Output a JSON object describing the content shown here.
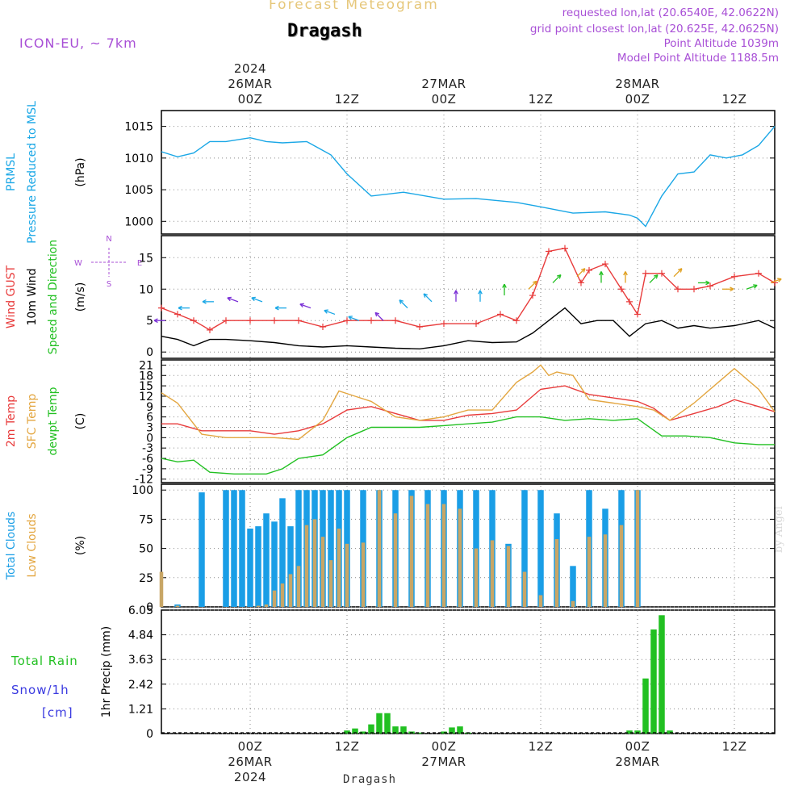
{
  "header": {
    "product": "Forecast Meteogram",
    "model": "ICON-EU, ~ 7km",
    "location": "Dragash",
    "requested": "requested lon,lat (20.6540E, 42.0622N)",
    "grid_point": "grid point closest lon,lat (20.625E, 42.0625N)",
    "point_alt": "Point Altitude 1039m",
    "model_alt": "Model Point Altitude 1188.5m",
    "footer": "Dragash",
    "credit": "by Angel",
    "colors": {
      "header_purple": "#a84fd6",
      "product_yellow": "#e6c77a",
      "title_black": "#000000"
    }
  },
  "time_axis": {
    "top_labels": [
      {
        "hour": 0,
        "lines": [
          "2024",
          "26MAR",
          "00Z"
        ]
      },
      {
        "hour": 12,
        "lines": [
          "12Z"
        ]
      },
      {
        "hour": 24,
        "lines": [
          "27MAR",
          "00Z"
        ]
      },
      {
        "hour": 36,
        "lines": [
          "12Z"
        ]
      },
      {
        "hour": 48,
        "lines": [
          "28MAR",
          "00Z"
        ]
      },
      {
        "hour": 60,
        "lines": [
          "12Z"
        ]
      }
    ],
    "bottom_labels": [
      {
        "hour": 0,
        "lines": [
          "00Z",
          "26MAR",
          "2024"
        ]
      },
      {
        "hour": 12,
        "lines": [
          "12Z"
        ]
      },
      {
        "hour": 24,
        "lines": [
          "00Z",
          "27MAR"
        ]
      },
      {
        "hour": 36,
        "lines": [
          "12Z"
        ]
      },
      {
        "hour": 48,
        "lines": [
          "00Z",
          "28MAR"
        ]
      },
      {
        "hour": 60,
        "lines": [
          "12Z"
        ]
      }
    ],
    "range_hours": [
      -11,
      65
    ]
  },
  "chart_data": [
    {
      "type": "line",
      "panel": "pressure",
      "label_lines": [
        {
          "text": "PRMSL",
          "color": "#1aa7e6"
        },
        {
          "text": "Pressure Reduced to MSL",
          "color": "#1aa7e6"
        }
      ],
      "unit": "(hPa)",
      "yticks": [
        1000,
        1005,
        1010,
        1015
      ],
      "ylim": [
        998,
        1017.5
      ],
      "grid": true,
      "series": [
        {
          "color": "#1aa7e6",
          "x": [
            -11,
            -9,
            -7,
            -5,
            -3,
            0,
            2,
            4,
            7,
            9,
            10,
            12,
            15,
            19,
            24,
            28,
            33,
            36,
            40,
            44,
            47,
            48,
            49,
            51,
            53,
            55,
            57,
            59,
            61,
            63,
            65
          ],
          "values": [
            1011,
            1010.2,
            1010.8,
            1012.6,
            1012.6,
            1013.2,
            1012.6,
            1012.4,
            1012.6,
            1011.2,
            1010.5,
            1007.5,
            1004,
            1004.6,
            1003.5,
            1003.6,
            1003,
            1002.3,
            1001.3,
            1001.5,
            1001,
            1000.5,
            999.2,
            1004,
            1007.5,
            1007.8,
            1010.5,
            1010,
            1010.5,
            1012,
            1015
          ]
        }
      ]
    },
    {
      "type": "line",
      "panel": "wind",
      "label_lines": [
        {
          "text": "Wind GUST",
          "color": "#e83b3b"
        },
        {
          "text": "10m Wind",
          "color": "#000000"
        },
        {
          "text": "Speed and Direction",
          "color": "#22c022"
        }
      ],
      "unit": "(m/s)",
      "compass": {
        "n": "N",
        "s": "S",
        "w": "W",
        "e": "E",
        "color": "#a84fd6"
      },
      "yticks": [
        0,
        5,
        10,
        15
      ],
      "ylim": [
        -1,
        18.5
      ],
      "grid": true,
      "series": [
        {
          "name": "Wind GUST",
          "color": "#e83b3b",
          "marker": "plus",
          "x": [
            -11,
            -9,
            -7,
            -5,
            -3,
            0,
            3,
            6,
            9,
            12,
            15,
            18,
            21,
            24,
            28,
            31,
            33,
            35,
            37,
            39,
            41,
            42,
            44,
            46,
            47,
            48,
            49,
            51,
            53,
            55,
            57,
            60,
            63,
            65
          ],
          "values": [
            7,
            6,
            5,
            3.5,
            5,
            5,
            5,
            5,
            4,
            5,
            5,
            5,
            4,
            4.5,
            4.5,
            6,
            5,
            9,
            16,
            16.5,
            11,
            13,
            14,
            10,
            8,
            6,
            12.5,
            12.5,
            10,
            10,
            10.5,
            12,
            12.5,
            11
          ]
        },
        {
          "name": "10m Wind",
          "color": "#000000",
          "x": [
            -11,
            -9,
            -7,
            -5,
            -3,
            0,
            3,
            6,
            9,
            12,
            15,
            18,
            21,
            24,
            27,
            30,
            33,
            35,
            37,
            39,
            41,
            43,
            45,
            47,
            49,
            51,
            53,
            55,
            57,
            60,
            63,
            65
          ],
          "values": [
            2.5,
            2,
            1,
            2,
            2,
            1.8,
            1.5,
            1,
            0.8,
            1,
            0.8,
            0.6,
            0.5,
            1,
            1.8,
            1.5,
            1.6,
            3,
            5,
            7,
            4.5,
            5,
            5,
            2.5,
            4.5,
            5,
            3.8,
            4.2,
            3.8,
            4.2,
            5,
            3.8
          ]
        }
      ],
      "wind_barbs": {
        "speeds": [
          5,
          7,
          8,
          8,
          8,
          7,
          7,
          6,
          5,
          5,
          7,
          8,
          8,
          8,
          9,
          10,
          11,
          12,
          11,
          11,
          11,
          12,
          11,
          10,
          10,
          11
        ],
        "dirs": [
          "W",
          "W",
          "W",
          "WNW",
          "WNW",
          "W",
          "WNW",
          "WNW",
          "WNW",
          "NW",
          "NW",
          "NW",
          "N",
          "N",
          "N",
          "NE",
          "NE",
          "NE",
          "N",
          "N",
          "NE",
          "NE",
          "E",
          "E",
          "ENE",
          "ENE"
        ]
      }
    },
    {
      "type": "line",
      "panel": "temperature",
      "label_lines": [
        {
          "text": "2m Temp",
          "color": "#e83b3b"
        },
        {
          "text": "SFC Temp",
          "color": "#e3a640"
        },
        {
          "text": "dewpt Temp",
          "color": "#22c022"
        }
      ],
      "unit": "(C)",
      "yticks": [
        -12,
        -9,
        -6,
        -3,
        0,
        3,
        6,
        9,
        12,
        15,
        18,
        21
      ],
      "ylim": [
        -13,
        22.5
      ],
      "grid": true,
      "series": [
        {
          "name": "2m Temp",
          "color": "#e83b3b",
          "x": [
            -11,
            -9,
            -6,
            -3,
            0,
            3,
            6,
            9,
            12,
            15,
            18,
            21,
            24,
            27,
            30,
            33,
            36,
            39,
            42,
            45,
            48,
            50,
            52,
            55,
            58,
            60,
            63,
            65
          ],
          "values": [
            4,
            4,
            2,
            2,
            2,
            1,
            2,
            4,
            8,
            9,
            7,
            5,
            5,
            6.5,
            7,
            8,
            14,
            15,
            12.5,
            11.5,
            10.5,
            8.5,
            5,
            7,
            9,
            11,
            9,
            7.5
          ]
        },
        {
          "name": "SFC Temp",
          "color": "#e3a640",
          "x": [
            -11,
            -9,
            -6,
            -3,
            0,
            3,
            6,
            9,
            11,
            13,
            15,
            18,
            21,
            24,
            27,
            30,
            33,
            35,
            36,
            37,
            38,
            40,
            42,
            45,
            48,
            50,
            52,
            55,
            58,
            60,
            63,
            65
          ],
          "values": [
            13,
            10,
            1,
            0,
            0,
            0,
            -0.5,
            5,
            13.5,
            12,
            10.5,
            6,
            5,
            6,
            8,
            8,
            16,
            19,
            21,
            18,
            19,
            18,
            11,
            10,
            9,
            8,
            5,
            10,
            16,
            20,
            14,
            7.5
          ]
        },
        {
          "name": "dewpt Temp",
          "color": "#22c022",
          "x": [
            -11,
            -9,
            -7,
            -5,
            -2,
            0,
            2,
            4,
            6,
            9,
            12,
            15,
            18,
            21,
            24,
            27,
            30,
            33,
            36,
            39,
            42,
            45,
            48,
            51,
            54,
            57,
            60,
            63,
            65
          ],
          "values": [
            -6,
            -7,
            -6.5,
            -10,
            -10.5,
            -10.5,
            -10.5,
            -9,
            -6,
            -5,
            0,
            3,
            3,
            3,
            3.5,
            4,
            4.5,
            6,
            6,
            5,
            5.5,
            5,
            5.5,
            0.5,
            0.5,
            0,
            -1.5,
            -2,
            -2
          ]
        }
      ]
    },
    {
      "type": "bar",
      "panel": "clouds",
      "label_lines": [
        {
          "text": "Total Clouds",
          "color": "#1a9ee6"
        },
        {
          "text": "Low Clouds",
          "color": "#e3a640"
        }
      ],
      "unit": "(%)",
      "yticks": [
        0,
        25,
        50,
        75,
        100
      ],
      "ylim": [
        0,
        105
      ],
      "grid": true,
      "series": [
        {
          "name": "Total Clouds",
          "color": "#1a9ee6",
          "x": [
            -11,
            -9,
            -6,
            -3,
            -2,
            -1,
            0,
            1,
            2,
            3,
            4,
            5,
            6,
            7,
            8,
            9,
            10,
            11,
            12,
            14,
            16,
            18,
            20,
            22,
            24,
            26,
            28,
            30,
            32,
            34,
            36,
            38,
            40,
            42,
            44,
            46,
            48
          ],
          "values": [
            0,
            2,
            98,
            100,
            100,
            100,
            67,
            69,
            80,
            73,
            93,
            69,
            100,
            100,
            100,
            100,
            100,
            100,
            100,
            100,
            100,
            100,
            100,
            100,
            100,
            100,
            100,
            100,
            54,
            100,
            100,
            80,
            35,
            100,
            84,
            100,
            100
          ]
        },
        {
          "name": "Low Clouds",
          "color": "#c8a666",
          "x": [
            -11,
            -9,
            -6,
            -3,
            -2,
            -1,
            0,
            1,
            2,
            3,
            4,
            5,
            6,
            7,
            8,
            9,
            10,
            11,
            12,
            14,
            16,
            18,
            20,
            22,
            24,
            26,
            28,
            30,
            32,
            34,
            36,
            38,
            40,
            42,
            44,
            46,
            48
          ],
          "values": [
            30,
            1,
            0,
            0,
            0,
            0,
            0,
            1,
            2,
            14,
            20,
            28,
            35,
            70,
            75,
            60,
            40,
            67,
            54,
            55,
            100,
            80,
            95,
            88,
            88,
            84,
            50,
            57,
            52,
            30,
            10,
            58,
            5,
            60,
            62,
            70,
            100
          ]
        }
      ]
    },
    {
      "type": "bar",
      "panel": "precipitation",
      "label_lines": [
        {
          "text": "Total  Rain",
          "color": "#22c022"
        },
        {
          "text": "Snow/1h",
          "color": "#3a3ae0"
        },
        {
          "text": "[cm]",
          "color": "#3a3ae0"
        }
      ],
      "ylabel": "1hr Precip (mm)",
      "yticks": [
        0,
        1.21,
        2.42,
        3.63,
        4.84,
        6.05
      ],
      "ylim": [
        0,
        6.05
      ],
      "grid": true,
      "series": [
        {
          "name": "Total Rain",
          "color": "#22c022",
          "x": [
            12,
            13,
            14,
            15,
            16,
            17,
            18,
            19,
            20,
            21,
            24,
            25,
            26,
            27,
            47,
            48,
            49,
            50,
            51,
            52
          ],
          "values": [
            0.15,
            0.25,
            0.1,
            0.45,
            1.0,
            1.0,
            0.35,
            0.35,
            0.1,
            0.05,
            0.1,
            0.3,
            0.35,
            0.05,
            0.15,
            0.15,
            2.7,
            5.1,
            5.8,
            0.15
          ]
        }
      ]
    }
  ]
}
